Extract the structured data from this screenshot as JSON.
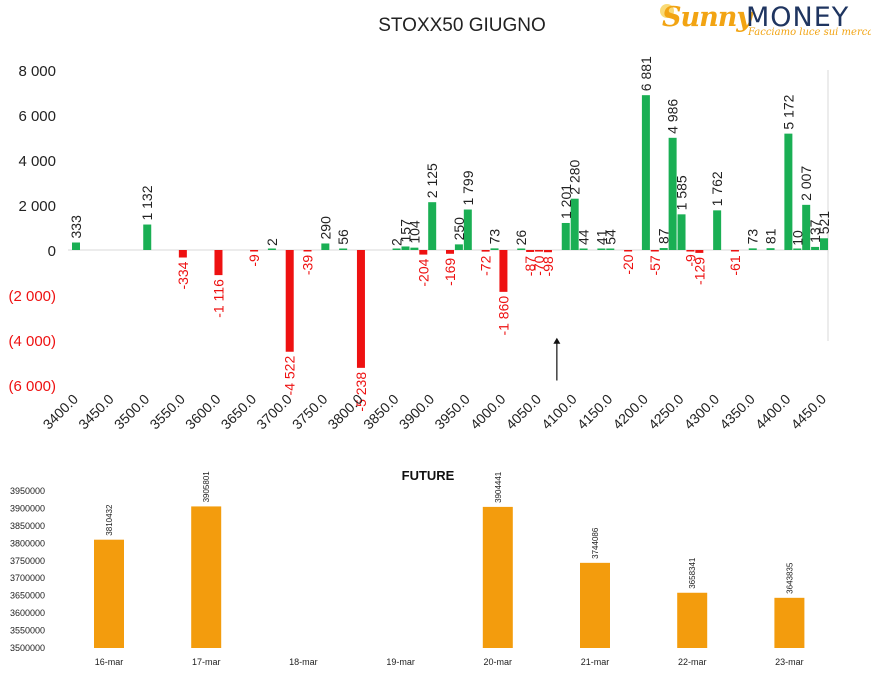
{
  "logo": {
    "brand_a": "Sunny",
    "brand_b": "MONEY",
    "tagline": "Facciamo luce sui mercati"
  },
  "chart_data": [
    {
      "type": "bar",
      "title": "STOXX50 GIUGNO",
      "colors": {
        "positive": "#1aaf54",
        "negative": "#ee1111",
        "axis_label": "#ee1111"
      },
      "ylim": [
        -6000,
        8000
      ],
      "yticks": [
        8000,
        6000,
        4000,
        2000,
        0,
        -2000,
        -4000,
        -6000
      ],
      "ytick_labels": [
        "8 000",
        "6 000",
        "4 000",
        "2 000",
        "0",
        "(2 000)",
        "(4 000)",
        "(6 000)"
      ],
      "categories": [
        "3400.0",
        "3450.0",
        "3500.0",
        "3550.0",
        "3600.0",
        "3650.0",
        "3700.0",
        "3750.0",
        "3800.0",
        "3850.0",
        "3900.0",
        "3950.0",
        "4000.0",
        "4050.0",
        "4100.0",
        "4150.0",
        "4200.0",
        "4250.0",
        "4300.0",
        "4350.0",
        "4400.0",
        "4450.0"
      ],
      "bars": [
        {
          "x": 3400.0,
          "value": 333
        },
        {
          "x": 3500.0,
          "value": 1132
        },
        {
          "x": 3550.0,
          "value": -334
        },
        {
          "x": 3600.0,
          "value": -1116
        },
        {
          "x": 3650.0,
          "value": -9
        },
        {
          "x": 3675.0,
          "value": 2
        },
        {
          "x": 3700.0,
          "value": -4522
        },
        {
          "x": 3725.0,
          "value": -39
        },
        {
          "x": 3750.0,
          "value": 290
        },
        {
          "x": 3775.0,
          "value": 56
        },
        {
          "x": 3800.0,
          "value": -5238
        },
        {
          "x": 3850.0,
          "value": 2
        },
        {
          "x": 3862.5,
          "value": 157
        },
        {
          "x": 3875.0,
          "value": 104
        },
        {
          "x": 3887.5,
          "value": -204
        },
        {
          "x": 3900.0,
          "value": 2125
        },
        {
          "x": 3925.0,
          "value": -169
        },
        {
          "x": 3937.5,
          "value": 250
        },
        {
          "x": 3950.0,
          "value": 1799
        },
        {
          "x": 3975.0,
          "value": -72
        },
        {
          "x": 3987.5,
          "value": 73
        },
        {
          "x": 4000.0,
          "value": -1860
        },
        {
          "x": 4025.0,
          "value": 26
        },
        {
          "x": 4037.5,
          "value": -87
        },
        {
          "x": 4050.0,
          "value": -70
        },
        {
          "x": 4062.5,
          "value": -98
        },
        {
          "x": 4087.5,
          "value": 1201
        },
        {
          "x": 4100.0,
          "value": 2280
        },
        {
          "x": 4112.5,
          "value": 44
        },
        {
          "x": 4137.5,
          "value": 41
        },
        {
          "x": 4150.0,
          "value": 54
        },
        {
          "x": 4175.0,
          "value": -20
        },
        {
          "x": 4200.0,
          "value": 6881
        },
        {
          "x": 4212.5,
          "value": -57
        },
        {
          "x": 4225.0,
          "value": 87
        },
        {
          "x": 4237.5,
          "value": 4986
        },
        {
          "x": 4250.0,
          "value": 1585
        },
        {
          "x": 4262.5,
          "value": -9
        },
        {
          "x": 4275.0,
          "value": -129
        },
        {
          "x": 4300.0,
          "value": 1762
        },
        {
          "x": 4325.0,
          "value": -61
        },
        {
          "x": 4350.0,
          "value": 73
        },
        {
          "x": 4375.0,
          "value": 81
        },
        {
          "x": 4400.0,
          "value": 5172
        },
        {
          "x": 4412.5,
          "value": 10
        },
        {
          "x": 4425.0,
          "value": 2007
        },
        {
          "x": 4437.5,
          "value": 137
        },
        {
          "x": 4450.0,
          "value": 521
        }
      ],
      "annotation": {
        "type": "arrow",
        "x": 4075.0,
        "from_value": -5800,
        "to_value": -3900
      }
    },
    {
      "type": "bar",
      "title": "FUTURE",
      "color": "#f39c0d",
      "ylim": [
        3500000,
        3950000
      ],
      "yticks": [
        3950000,
        3900000,
        3850000,
        3800000,
        3750000,
        3700000,
        3650000,
        3600000,
        3550000,
        3500000
      ],
      "ytick_labels": [
        "3950000",
        "3900000",
        "3850000",
        "3800000",
        "3750000",
        "3700000",
        "3650000",
        "3600000",
        "3550000",
        "3500000"
      ],
      "categories": [
        "16-mar",
        "17-mar",
        "18-mar",
        "19-mar",
        "20-mar",
        "21-mar",
        "22-mar",
        "23-mar"
      ],
      "values": [
        3810432,
        3905801,
        null,
        null,
        3904441,
        3744086,
        3658341,
        3643835
      ],
      "value_labels": [
        "3810432",
        "3905801",
        "",
        "",
        "3904441",
        "3744086",
        "3658341",
        "3643835"
      ]
    }
  ]
}
